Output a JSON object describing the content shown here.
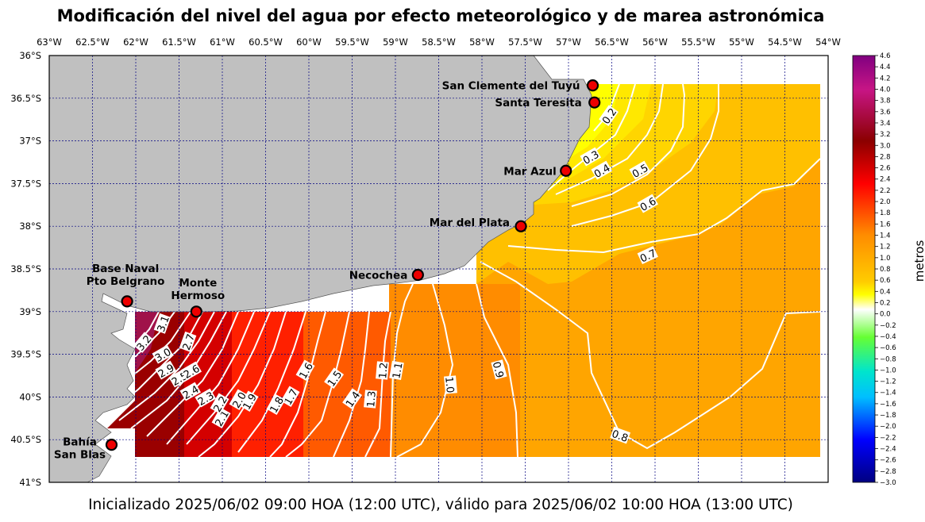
{
  "title": "Modificación del nivel del agua por efecto meteorológico y de marea astronómica",
  "subtitle": "Inicializado 2025/06/02 09:00 HOA (12:00 UTC), válido para 2025/06/02 10:00 HOA (13:00 UTC)",
  "colorbar": {
    "label": "metros",
    "ticks": [
      "4.6",
      "4.4",
      "4.2",
      "4.0",
      "3.8",
      "3.6",
      "3.4",
      "3.2",
      "3.0",
      "2.8",
      "2.6",
      "2.4",
      "2.2",
      "2.0",
      "1.8",
      "1.6",
      "1.4",
      "1.2",
      "1.0",
      "0.8",
      "0.6",
      "0.4",
      "0.2",
      "0.0",
      "−0.2",
      "−0.4",
      "−0.6",
      "−0.8",
      "−1.0",
      "−1.2",
      "−1.4",
      "−1.6",
      "−1.8",
      "−2.0",
      "−2.2",
      "−2.4",
      "−2.6",
      "−2.8",
      "−3.0"
    ],
    "colors": {
      "top": "#8b008b",
      "magenta": "#c71585",
      "darkred": "#8b0000",
      "red": "#ff0000",
      "orange": "#ff8c00",
      "yellow": "#ffff00",
      "white": "#ffffff",
      "green": "#32cd32",
      "cyan": "#00ffff",
      "blue": "#0000ff",
      "navy": "#00008b"
    }
  },
  "map": {
    "lon_labels": [
      "63°W",
      "62.5°W",
      "62°W",
      "61.5°W",
      "61°W",
      "60.5°W",
      "60°W",
      "59.5°W",
      "59°W",
      "58.5°W",
      "58°W",
      "57.5°W",
      "57°W",
      "56.5°W",
      "56°W",
      "55.5°W",
      "55°W",
      "54.5°W",
      "54°W"
    ],
    "lat_labels": [
      "36°S",
      "36.5°S",
      "37°S",
      "37.5°S",
      "38°S",
      "38.5°S",
      "39°S",
      "39.5°S",
      "40°S",
      "40.5°S",
      "41°S"
    ],
    "land_color": "#c0c0c0",
    "grid_color": "#00008b"
  },
  "places": [
    {
      "name_lines": [
        "San Clemente del Tuyú"
      ],
      "lon": -56.72,
      "lat": -36.35
    },
    {
      "name_lines": [
        "Santa Teresita"
      ],
      "lon": -56.7,
      "lat": -36.55
    },
    {
      "name_lines": [
        "Mar Azul"
      ],
      "lon": -57.03,
      "lat": -37.35
    },
    {
      "name_lines": [
        "Mar del Plata"
      ],
      "lon": -57.55,
      "lat": -38.0
    },
    {
      "name_lines": [
        "Necochea"
      ],
      "lon": -58.74,
      "lat": -38.57
    },
    {
      "name_lines": [
        "Base Naval",
        "Pto Belgrano"
      ],
      "lon": -62.1,
      "lat": -38.88
    },
    {
      "name_lines": [
        "Monte",
        "Hermoso"
      ],
      "lon": -61.3,
      "lat": -39.0
    },
    {
      "name_lines": [
        "Bahía",
        "San Blas"
      ],
      "lon": -62.28,
      "lat": -40.56
    }
  ],
  "contour_labels": [
    "0.2",
    "0.3",
    "0.4",
    "0.5",
    "0.6",
    "0.7",
    "0.8",
    "0.9",
    "1.0",
    "1.1",
    "1.2",
    "1.3",
    "1.4",
    "1.5",
    "1.6",
    "1.7",
    "1.8",
    "1.9",
    "2.0",
    "2.1",
    "2.2",
    "2.3",
    "2.4",
    "2.5",
    "2.6",
    "2.7",
    "2.9",
    "3.0",
    "3.1",
    "3.2"
  ]
}
